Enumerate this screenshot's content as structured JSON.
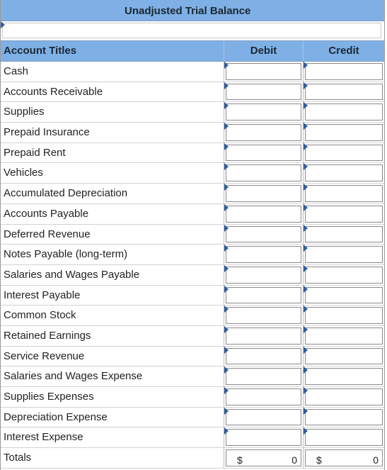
{
  "title": "Unadjusted Trial Balance",
  "name_field": {
    "value": "",
    "placeholder": ""
  },
  "columns": {
    "account": "Account Titles",
    "debit": "Debit",
    "credit": "Credit"
  },
  "accounts": [
    "Cash",
    "Accounts Receivable",
    "Supplies",
    "Prepaid Insurance",
    "Prepaid Rent",
    "Vehicles",
    "Accumulated Depreciation",
    "Accounts Payable",
    "Deferred Revenue",
    "Notes Payable (long-term)",
    "Salaries and Wages Payable",
    "Interest Payable",
    "Common Stock",
    "Retained Earnings",
    "Service Revenue",
    "Salaries and Wages Expense",
    "Supplies Expenses",
    "Depreciation Expense",
    "Interest Expense"
  ],
  "totals": {
    "label": "Totals",
    "debit_currency": "$",
    "debit_total": "0",
    "credit_currency": "$",
    "credit_total": "0"
  },
  "colors": {
    "header_bg": "#7fb0e5",
    "marker": "#2f5d9d"
  }
}
